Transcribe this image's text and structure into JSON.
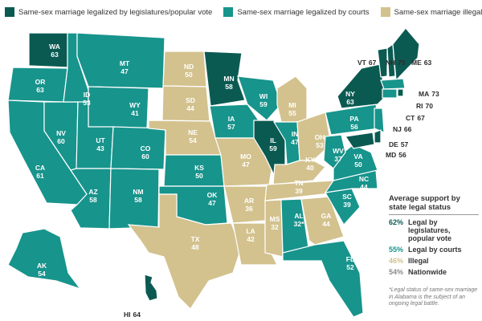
{
  "colors": {
    "legislature": "#0b5a52",
    "courts": "#17948c",
    "illegal": "#d3c28e",
    "nationwide": "#b7b7b7",
    "border": "#ffffff"
  },
  "legend": [
    {
      "key": "legislature",
      "label": "Same-sex marriage legalized by legislatures/popular vote"
    },
    {
      "key": "courts",
      "label": "Same-sex marriage legalized by courts"
    },
    {
      "key": "illegal",
      "label": "Same-sex marriage illegal"
    }
  ],
  "states": [
    {
      "abbr": "WA",
      "value": "63",
      "status": "legislature"
    },
    {
      "abbr": "OR",
      "value": "63",
      "status": "courts"
    },
    {
      "abbr": "CA",
      "value": "61",
      "status": "courts"
    },
    {
      "abbr": "NV",
      "value": "60",
      "status": "courts"
    },
    {
      "abbr": "ID",
      "value": "53",
      "status": "courts"
    },
    {
      "abbr": "MT",
      "value": "47",
      "status": "courts"
    },
    {
      "abbr": "WY",
      "value": "41",
      "status": "courts"
    },
    {
      "abbr": "UT",
      "value": "43",
      "status": "courts"
    },
    {
      "abbr": "AZ",
      "value": "58",
      "status": "courts"
    },
    {
      "abbr": "CO",
      "value": "60",
      "status": "courts"
    },
    {
      "abbr": "NM",
      "value": "58",
      "status": "courts"
    },
    {
      "abbr": "ND",
      "value": "50",
      "status": "illegal"
    },
    {
      "abbr": "SD",
      "value": "44",
      "status": "illegal"
    },
    {
      "abbr": "NE",
      "value": "54",
      "status": "illegal"
    },
    {
      "abbr": "KS",
      "value": "50",
      "status": "courts"
    },
    {
      "abbr": "OK",
      "value": "47",
      "status": "courts"
    },
    {
      "abbr": "TX",
      "value": "48",
      "status": "illegal"
    },
    {
      "abbr": "MN",
      "value": "58",
      "status": "legislature"
    },
    {
      "abbr": "IA",
      "value": "57",
      "status": "courts"
    },
    {
      "abbr": "MO",
      "value": "47",
      "status": "illegal"
    },
    {
      "abbr": "AR",
      "value": "36",
      "status": "illegal"
    },
    {
      "abbr": "LA",
      "value": "42",
      "status": "illegal"
    },
    {
      "abbr": "WI",
      "value": "59",
      "status": "courts"
    },
    {
      "abbr": "IL",
      "value": "59",
      "status": "legislature"
    },
    {
      "abbr": "MI",
      "value": "55",
      "status": "illegal"
    },
    {
      "abbr": "IN",
      "value": "47",
      "status": "courts"
    },
    {
      "abbr": "OH",
      "value": "53",
      "status": "illegal"
    },
    {
      "abbr": "KY",
      "value": "40",
      "status": "illegal"
    },
    {
      "abbr": "TN",
      "value": "39",
      "status": "illegal"
    },
    {
      "abbr": "MS",
      "value": "32",
      "status": "illegal"
    },
    {
      "abbr": "AL",
      "value": "32*",
      "status": "courts"
    },
    {
      "abbr": "GA",
      "value": "44",
      "status": "illegal"
    },
    {
      "abbr": "FL",
      "value": "52",
      "status": "courts"
    },
    {
      "abbr": "SC",
      "value": "39",
      "status": "courts"
    },
    {
      "abbr": "NC",
      "value": "44",
      "status": "courts"
    },
    {
      "abbr": "VA",
      "value": "50",
      "status": "courts"
    },
    {
      "abbr": "WV",
      "value": "37",
      "status": "courts"
    },
    {
      "abbr": "PA",
      "value": "56",
      "status": "courts"
    },
    {
      "abbr": "NY",
      "value": "63",
      "status": "legislature"
    },
    {
      "abbr": "VT",
      "value": "67",
      "status": "legislature"
    },
    {
      "abbr": "NH",
      "value": "75",
      "status": "legislature"
    },
    {
      "abbr": "ME",
      "value": "63",
      "status": "legislature"
    },
    {
      "abbr": "MA",
      "value": "73",
      "status": "courts"
    },
    {
      "abbr": "RI",
      "value": "70",
      "status": "legislature"
    },
    {
      "abbr": "CT",
      "value": "67",
      "status": "courts"
    },
    {
      "abbr": "NJ",
      "value": "66",
      "status": "courts"
    },
    {
      "abbr": "DE",
      "value": "57",
      "status": "legislature"
    },
    {
      "abbr": "MD",
      "value": "56",
      "status": "legislature"
    },
    {
      "abbr": "AK",
      "value": "54",
      "status": "courts"
    },
    {
      "abbr": "HI",
      "value": "64",
      "status": "legislature"
    }
  ],
  "average_support": {
    "title": "Average support by state legal status",
    "rows": [
      {
        "pct": "62%",
        "label": "Legal by legislatures, popular vote",
        "key": "legislature"
      },
      {
        "pct": "55%",
        "label": "Legal by courts",
        "key": "courts"
      },
      {
        "pct": "46%",
        "label": "Illegal",
        "key": "illegal"
      },
      {
        "pct": "54%",
        "label": "Nationwide",
        "key": "nationwide"
      }
    ]
  },
  "footnote": "*Legal status of same-sex marriage in Alabama is the subject of an ongoing legal battle."
}
